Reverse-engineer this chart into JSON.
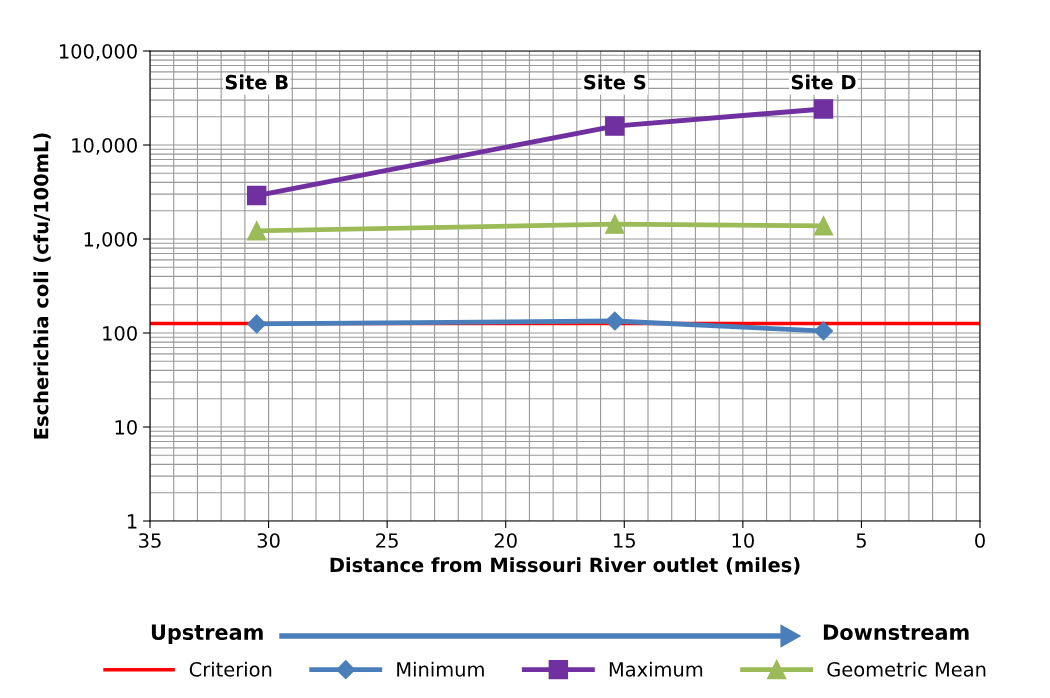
{
  "chart_data": {
    "type": "line",
    "xlabel": "Distance from Missouri River outlet (miles)",
    "ylabel": "Escherichia coli (cfu/100mL)",
    "x": [
      30.5,
      15.4,
      6.6
    ],
    "series": [
      {
        "name": "Minimum",
        "color": "#4a7ebb",
        "marker": "diamond",
        "values": [
          125,
          134,
          105
        ]
      },
      {
        "name": "Maximum",
        "color": "#7030a0",
        "marker": "square",
        "values": [
          2900,
          15900,
          24200
        ]
      },
      {
        "name": "Geometric Mean",
        "color": "#9bbb59",
        "marker": "triangle",
        "values": [
          1220,
          1440,
          1380
        ]
      }
    ],
    "ref_lines": [
      {
        "axis": "y",
        "value": 126,
        "label": "Criterion",
        "color": "#ff0000"
      }
    ],
    "log": "y",
    "xlim": [
      35,
      0
    ],
    "xticks": [
      35,
      30,
      25,
      20,
      15,
      10,
      5,
      0
    ],
    "ylim": [
      1,
      100000
    ],
    "yticks": [
      1,
      10,
      100,
      {
        "value": 1000,
        "label": "1,000"
      },
      {
        "value": 10000,
        "label": "10,000"
      },
      {
        "value": 100000,
        "label": "100,000"
      }
    ],
    "grid": true,
    "legend": "bottom",
    "annotations": [
      "Site B",
      "Site S",
      "Site D",
      "Upstream",
      "Downstream"
    ]
  }
}
